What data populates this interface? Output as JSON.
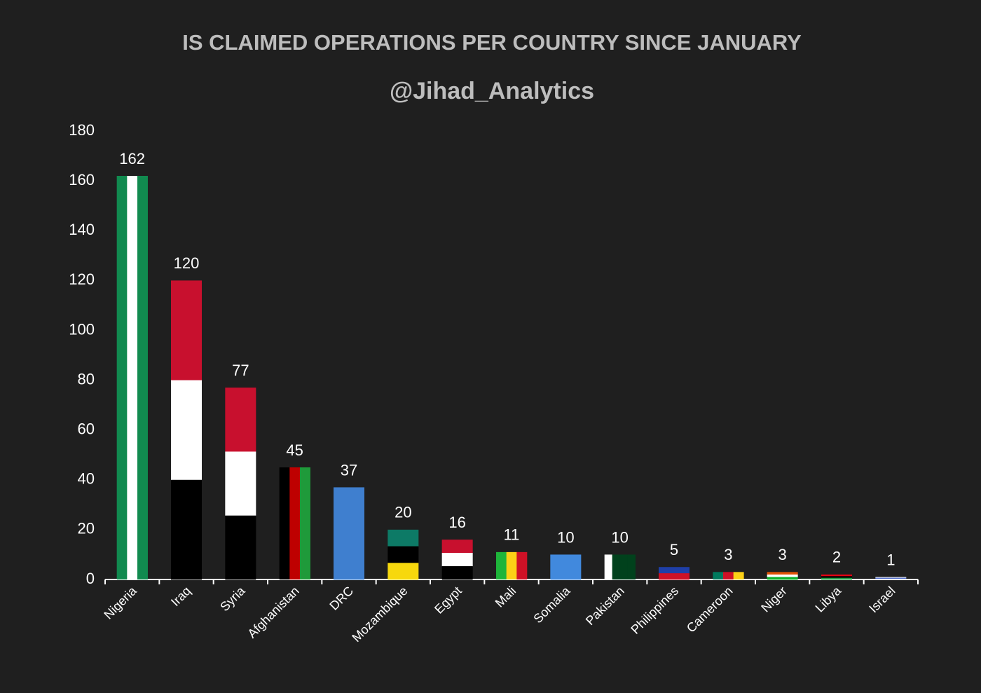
{
  "chart_data": {
    "type": "bar",
    "title": "IS CLAIMED OPERATIONS PER COUNTRY SINCE JANUARY",
    "subtitle": "@Jihad_Analytics",
    "categories": [
      "Nigeria",
      "Iraq",
      "Syria",
      "Afghanistan",
      "DRC",
      "Mozambique",
      "Egypt",
      "Mali",
      "Somalia",
      "Pakistan",
      "Philippines",
      "Cameroon",
      "Niger",
      "Libya",
      "Israel"
    ],
    "values": [
      162,
      120,
      77,
      45,
      37,
      20,
      16,
      11,
      10,
      10,
      5,
      3,
      3,
      2,
      1
    ],
    "bar_stripes": [
      [
        "#118a4f",
        "#ffffff",
        "#118a4f"
      ],
      [
        "#c8102e",
        "#ffffff",
        "#000000"
      ],
      [
        "#c8102e",
        "#ffffff",
        "#000000"
      ],
      [
        "#000000",
        "#be0000",
        "#1f9a3a"
      ],
      [
        "#3f7fcf"
      ],
      [
        "#0d7a66",
        "#000000",
        "#f7d80d"
      ],
      [
        "#c8102e",
        "#ffffff",
        "#000000"
      ],
      [
        "#1eb53a",
        "#fcd116",
        "#ce1126"
      ],
      [
        "#4189dd"
      ],
      [
        "#ffffff",
        "#01411c",
        "#01411c",
        "#01411c"
      ],
      [
        "#1f3fa8",
        "#ce1126"
      ],
      [
        "#007a5e",
        "#ce1126",
        "#fcd116"
      ],
      [
        "#e05206",
        "#ffffff",
        "#0db02b"
      ],
      [
        "#e70013",
        "#000000",
        "#239e46"
      ],
      [
        "#ffffff",
        "#2d4fc0",
        "#ffffff"
      ]
    ],
    "stripe_direction": [
      "v",
      "h",
      "h",
      "v",
      "h",
      "h",
      "h",
      "v",
      "h",
      "v",
      "h",
      "v",
      "h",
      "h",
      "h"
    ],
    "ylim": [
      0,
      180
    ],
    "yticks": [
      0,
      20,
      40,
      60,
      80,
      100,
      120,
      140,
      160,
      180
    ],
    "grid": false
  }
}
